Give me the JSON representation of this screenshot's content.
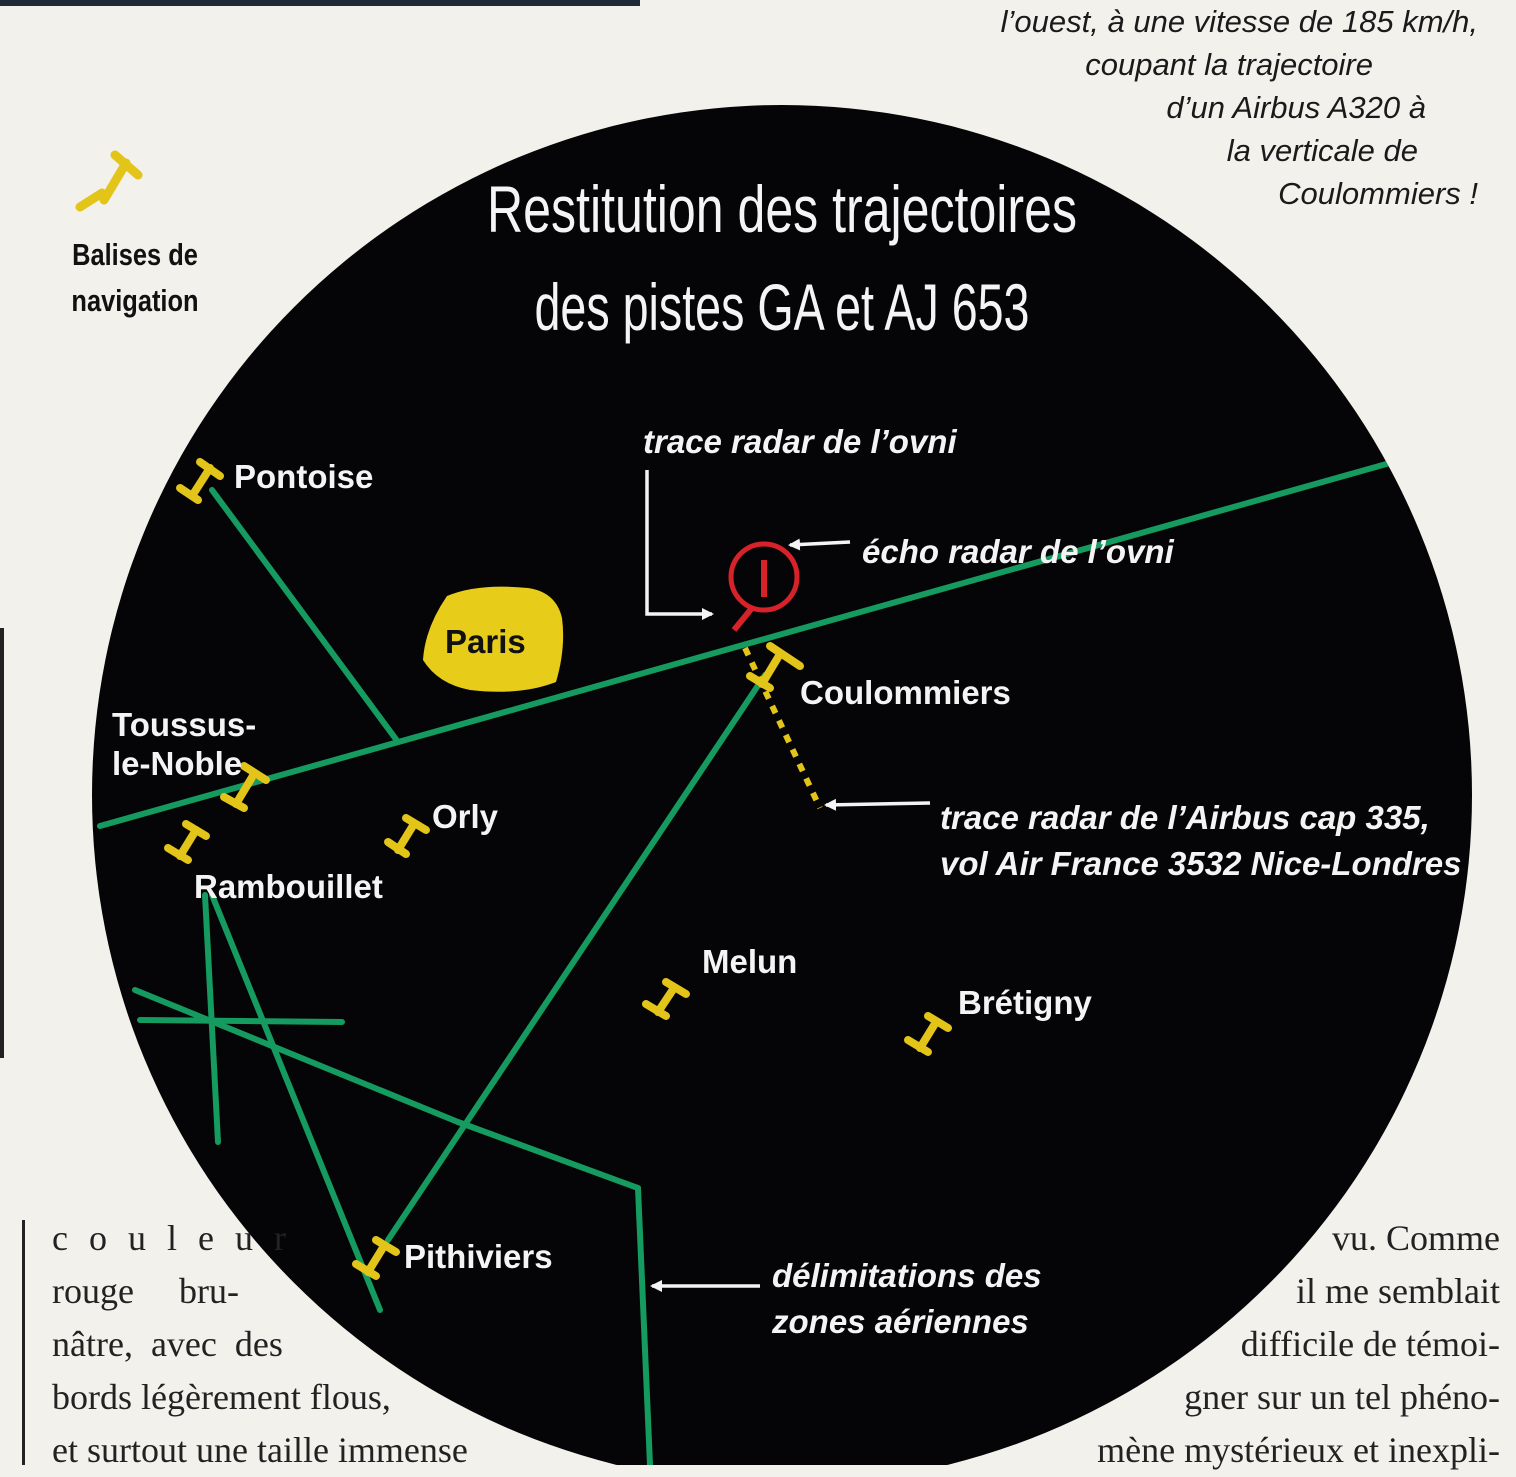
{
  "intro_caption": {
    "lines": [
      "l’ouest, à une vitesse de 185 km/h,",
      "coupant la trajectoire",
      "d’un Airbus A320 à",
      "la verticale de",
      "Coulommiers !"
    ]
  },
  "legend": {
    "icon": "navigation-beacon-icon",
    "label_line1": "Balises de",
    "label_line2": "navigation"
  },
  "map": {
    "title_line1": "Restitution des trajectoires",
    "title_line2": "des pistes GA et AJ 653",
    "city": "Paris",
    "beacons": {
      "pontoise": "Pontoise",
      "toussus_line1": "Toussus-",
      "toussus_line2": "le-Noble",
      "orly": "Orly",
      "rambouillet": "Rambouillet",
      "coulommiers": "Coulommiers",
      "melun": "Melun",
      "bretigny": "Brétigny",
      "pithiviers": "Pithiviers"
    },
    "annotations": {
      "ufo_trace": "trace radar de l’ovni",
      "ufo_echo": "écho radar de l’ovni",
      "airbus_line1": "trace radar de l’Airbus cap 335,",
      "airbus_line2": "vol Air France 3532 Nice-Londres",
      "zones_line1": "délimitations des",
      "zones_line2": "zones aériennes"
    },
    "colors": {
      "disc": "#050507",
      "route": "#159a60",
      "beacon": "#e3c418",
      "paris": "#e8cc1a",
      "ufo": "#d8222a",
      "text": "#f4f4f4"
    }
  },
  "body_left": [
    "c o u l e u r",
    "rouge     bru-",
    "nâtre,  avec  des",
    "bords légèrement flous,",
    "et surtout une taille immense"
  ],
  "body_right": [
    "vu. Comme",
    "il me semblait",
    "difficile de témoi-",
    "gner sur un tel phéno-",
    "mène mystérieux et inexpli-"
  ]
}
